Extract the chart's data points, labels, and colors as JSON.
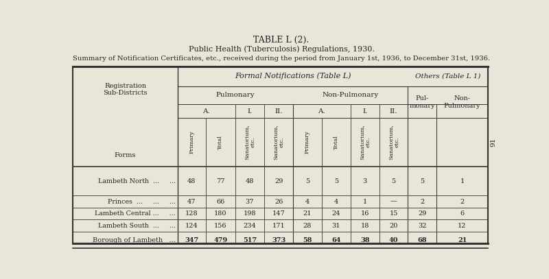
{
  "title1": "TABLE L (2).",
  "title2": "Public Health (Tuberculosis) Regulations, 1930.",
  "title3": "Summary of Notification Certificates, etc., received during the period from January 1st, 1936, to December 31st, 1936.",
  "bg_color": "#e9e5d9",
  "text_color": "#222222",
  "page_number": "91",
  "data_rows": [
    [
      "Lambeth North  ...     ...",
      "48",
      "77",
      "48",
      "29",
      "5",
      "5",
      "3",
      "5",
      "5",
      "1"
    ],
    [
      "Princes  ...     ...     ...",
      "47",
      "66",
      "37",
      "26",
      "4",
      "4",
      "1",
      "—",
      "2",
      "2"
    ],
    [
      "Lambeth Central ...     ...",
      "128",
      "180",
      "198",
      "147",
      "21",
      "24",
      "16",
      "15",
      "29",
      "6"
    ],
    [
      "Lambeth South  ...     ...",
      "124",
      "156",
      "234",
      "171",
      "28",
      "31",
      "18",
      "20",
      "32",
      "12"
    ]
  ],
  "total_row": [
    "Borough of Lambeth   ...",
    "347",
    "479",
    "517",
    "373",
    "58",
    "64",
    "38",
    "40",
    "68",
    "21"
  ]
}
